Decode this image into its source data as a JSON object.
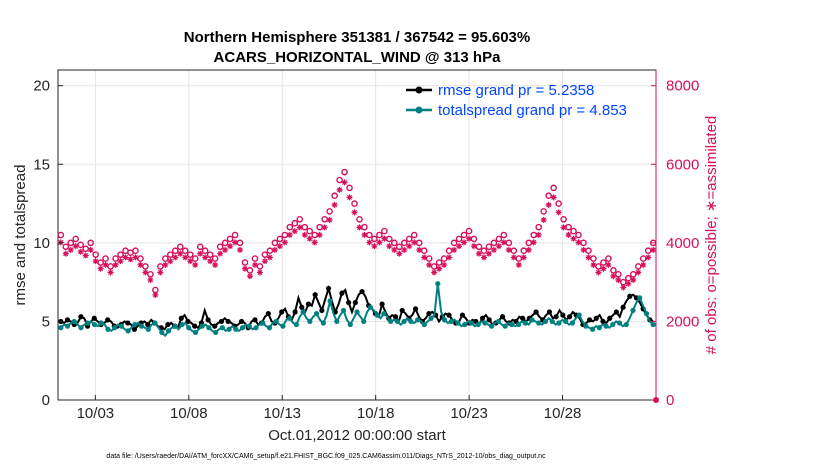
{
  "title_line1": "Northern Hemisphere 351381 / 367542 = 95.603%",
  "title_line2": "ACARS_HORIZONTAL_WIND @ 313 hPa",
  "ylabel_left": "rmse and totalspread",
  "ylabel_right": "# of obs: o=possible; ∗=assimilated",
  "xlabel": "Oct.01,2012 00:00:00 start",
  "footer": "data file: /Users/raeder/DAI/ATM_forcXX/CAM6_setup/f.e21.FHIST_BGC.f09_025.CAM6assim.011/Diags_NTrS_2012-10/obs_diag_output.nc",
  "colors": {
    "rmse": "#000000",
    "spread": "#008080",
    "obs": "#d6105a",
    "legend_text": "#0047ff"
  },
  "chart_data": {
    "type": "line",
    "grid": true,
    "legend_position": "top-right",
    "x_start": "2012-10-01",
    "x_ticks": [
      "10/03",
      "10/08",
      "10/13",
      "10/18",
      "10/23",
      "10/28"
    ],
    "left_axis": {
      "ylim": [
        0,
        21
      ],
      "ticks": [
        "0",
        "5",
        "10",
        "15",
        "20"
      ]
    },
    "right_axis": {
      "ylim": [
        0,
        8400
      ],
      "ticks": [
        "0",
        "2000",
        "4000",
        "6000",
        "8000"
      ]
    },
    "series": [
      {
        "name": "rmse grand pr = 5.2358",
        "axis": "left",
        "values": [
          5.0,
          4.9,
          5.1,
          5.0,
          4.8,
          4.9,
          5.3,
          5.2,
          4.7,
          5.0,
          5.2,
          5.0,
          4.8,
          4.9,
          5.1,
          5.0,
          4.7,
          4.6,
          4.8,
          5.0,
          4.9,
          4.8,
          4.5,
          4.7,
          4.9,
          5.0,
          4.8,
          5.1,
          4.9,
          4.7,
          4.6,
          4.5,
          4.8,
          4.9,
          4.7,
          4.6,
          5.2,
          5.4,
          5.0,
          4.9,
          4.7,
          4.6,
          4.9,
          5.7,
          5.1,
          4.8,
          4.7,
          4.9,
          5.0,
          5.2,
          5.0,
          4.9,
          4.7,
          4.8,
          5.0,
          4.9,
          4.6,
          5.0,
          5.1,
          4.8,
          4.9,
          5.3,
          5.5,
          5.0,
          4.9,
          5.2,
          5.6,
          5.8,
          5.3,
          5.1,
          5.6,
          6.5,
          5.9,
          5.6,
          6.1,
          6.0,
          6.7,
          6.2,
          5.7,
          6.4,
          7.1,
          6.3,
          5.6,
          6.1,
          6.8,
          7.0,
          6.2,
          5.6,
          6.2,
          6.7,
          6.9,
          6.6,
          6.0,
          5.8,
          5.5,
          5.3,
          6.1,
          5.6,
          5.2,
          5.4,
          5.3,
          5.0,
          5.7,
          5.5,
          5.2,
          5.4,
          5.8,
          5.3,
          5.0,
          5.2,
          5.5,
          5.6,
          5.4,
          5.0,
          5.3,
          5.5,
          5.4,
          5.1,
          4.9,
          5.0,
          5.4,
          5.2,
          4.9,
          5.1,
          5.0,
          4.8,
          5.2,
          5.4,
          5.1,
          4.8,
          4.9,
          5.1,
          5.3,
          5.0,
          4.9,
          5.1,
          5.0,
          5.3,
          5.2,
          5.0,
          5.2,
          5.4,
          5.6,
          5.3,
          5.1,
          5.4,
          5.6,
          5.2,
          5.3,
          5.7,
          5.4,
          5.1,
          5.3,
          5.6,
          5.4,
          5.2,
          4.8,
          4.9,
          5.1,
          5.0,
          5.2,
          5.4,
          5.0,
          4.9,
          5.2,
          5.4,
          5.6,
          5.3,
          5.9,
          6.3,
          6.6,
          6.7,
          6.5,
          6.2,
          5.8,
          5.4,
          5.1,
          5.0
        ]
      },
      {
        "name": "totalspread grand pr = 4.853",
        "axis": "left",
        "values": [
          4.6,
          4.8,
          4.7,
          4.9,
          5.0,
          4.8,
          4.6,
          4.8,
          4.9,
          5.0,
          4.8,
          4.7,
          4.9,
          4.8,
          4.5,
          4.4,
          4.6,
          4.8,
          4.7,
          4.5,
          4.4,
          4.6,
          4.8,
          4.9,
          4.7,
          4.6,
          4.5,
          4.8,
          4.9,
          4.6,
          4.3,
          4.1,
          4.4,
          4.6,
          4.7,
          4.5,
          4.8,
          4.9,
          4.6,
          4.4,
          4.3,
          4.5,
          4.7,
          4.8,
          4.6,
          4.4,
          4.3,
          4.5,
          4.6,
          4.4,
          4.5,
          4.7,
          4.5,
          4.4,
          4.6,
          4.8,
          4.7,
          4.5,
          4.6,
          4.8,
          4.9,
          4.7,
          4.6,
          4.9,
          5.0,
          4.8,
          4.7,
          5.1,
          5.2,
          4.9,
          4.8,
          5.3,
          5.6,
          5.2,
          5.0,
          5.3,
          5.5,
          5.1,
          4.9,
          5.4,
          6.3,
          5.5,
          5.0,
          5.4,
          5.7,
          5.1,
          4.8,
          5.2,
          5.6,
          5.3,
          5.0,
          5.6,
          5.9,
          5.7,
          5.4,
          5.2,
          5.5,
          5.3,
          5.0,
          5.1,
          5.0,
          4.8,
          5.0,
          5.2,
          5.0,
          4.9,
          5.1,
          5.0,
          4.8,
          5.0,
          5.2,
          5.4,
          7.4,
          5.6,
          5.1,
          4.9,
          5.0,
          5.1,
          4.9,
          4.7,
          4.8,
          5.0,
          4.9,
          4.7,
          4.8,
          5.0,
          4.9,
          4.8,
          4.7,
          4.9,
          5.0,
          4.8,
          4.7,
          4.9,
          4.8,
          4.7,
          4.8,
          5.0,
          4.9,
          4.8,
          5.1,
          5.0,
          4.9,
          4.8,
          5.0,
          5.2,
          5.0,
          4.8,
          4.9,
          5.1,
          5.0,
          4.8,
          4.9,
          5.2,
          5.4,
          5.0,
          4.7,
          4.6,
          4.5,
          4.7,
          4.6,
          4.8,
          4.7,
          4.6,
          4.8,
          5.0,
          4.9,
          4.7,
          4.8,
          5.2,
          5.7,
          6.2,
          6.5,
          6.0,
          5.5,
          5.0,
          4.8
        ]
      }
    ],
    "obs_possible": [
      4200,
      3900,
      4000,
      4100,
      3950,
      3850,
      4000,
      3700,
      3500,
      3600,
      3400,
      3600,
      3700,
      3800,
      3750,
      3800,
      3600,
      3400,
      3200,
      2800,
      3400,
      3600,
      3700,
      3800,
      3900,
      3800,
      3700,
      3600,
      3900,
      3800,
      3700,
      3600,
      3900,
      4000,
      4100,
      4200,
      4000,
      3500,
      3300,
      3600,
      3400,
      3700,
      3800,
      4000,
      4100,
      4200,
      4400,
      4500,
      4600,
      4400,
      4300,
      4200,
      4400,
      4600,
      4800,
      5200,
      5600,
      5800,
      5400,
      5000,
      4600,
      4400,
      4200,
      4100,
      4200,
      4300,
      4100,
      4000,
      3900,
      4000,
      4100,
      4200,
      4000,
      3800,
      3600,
      3400,
      3500,
      3600,
      3800,
      4000,
      4100,
      4200,
      4300,
      4100,
      3900,
      3800,
      3900,
      4000,
      4100,
      4200,
      4000,
      3800,
      3600,
      3800,
      4000,
      4200,
      4400,
      4800,
      5200,
      5400,
      5000,
      4600,
      4400,
      4300,
      4200,
      4000,
      3800,
      3600,
      3400,
      3500,
      3600,
      3300,
      3200,
      3000,
      3100,
      3200,
      3400,
      3600,
      3800,
      4000
    ]
  }
}
